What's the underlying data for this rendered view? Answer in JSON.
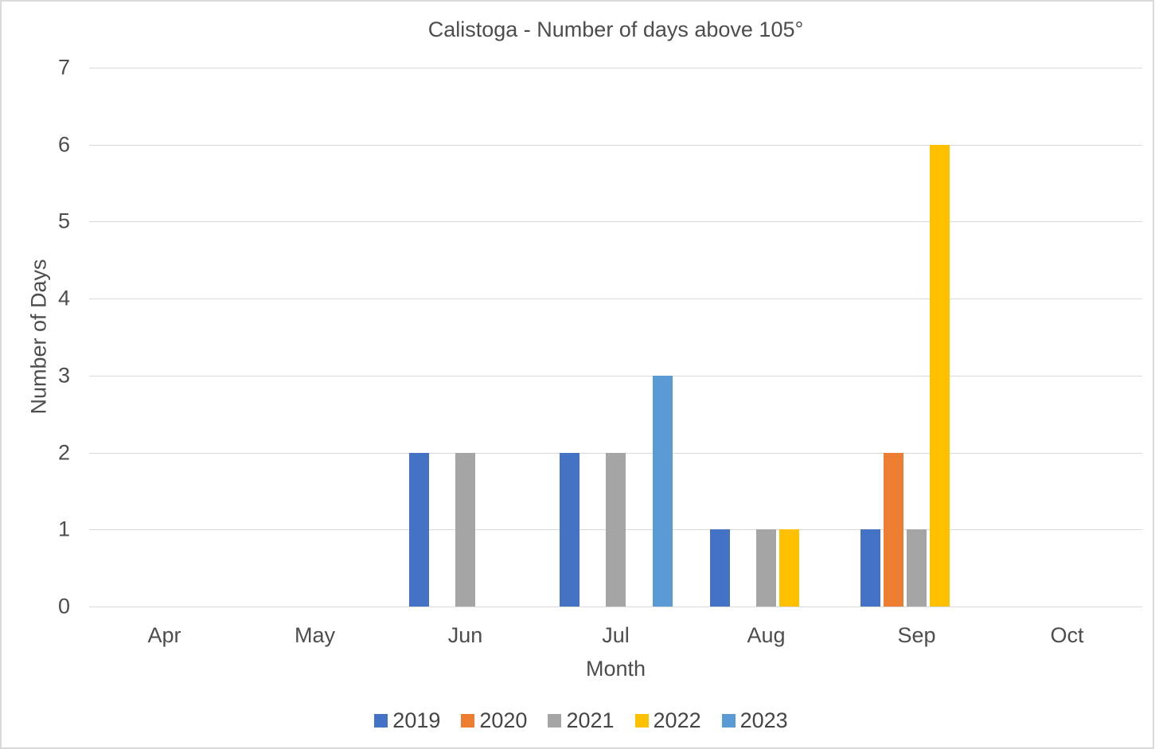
{
  "chart_data": {
    "type": "bar",
    "title": "Calistoga - Number of days above 105°",
    "xlabel": "Month",
    "ylabel": "Number of Days",
    "categories": [
      "Apr",
      "May",
      "Jun",
      "Jul",
      "Aug",
      "Sep",
      "Oct"
    ],
    "series": [
      {
        "name": "2019",
        "color": "#4472C4",
        "values": [
          0,
          0,
          2,
          2,
          1,
          1,
          0
        ]
      },
      {
        "name": "2020",
        "color": "#ED7D31",
        "values": [
          0,
          0,
          0,
          0,
          0,
          2,
          0
        ]
      },
      {
        "name": "2021",
        "color": "#A5A5A5",
        "values": [
          0,
          0,
          2,
          2,
          1,
          1,
          0
        ]
      },
      {
        "name": "2022",
        "color": "#FFC000",
        "values": [
          0,
          0,
          0,
          0,
          1,
          6,
          0
        ]
      },
      {
        "name": "2023",
        "color": "#5B9BD5",
        "values": [
          0,
          0,
          0,
          3,
          0,
          0,
          0
        ]
      }
    ],
    "ylim": [
      0,
      7
    ],
    "yticks": [
      0,
      1,
      2,
      3,
      4,
      5,
      6,
      7
    ],
    "grid": true,
    "legend_position": "bottom",
    "gridline_color": "#d9d9d9",
    "text_color": "#4d4d4d"
  }
}
